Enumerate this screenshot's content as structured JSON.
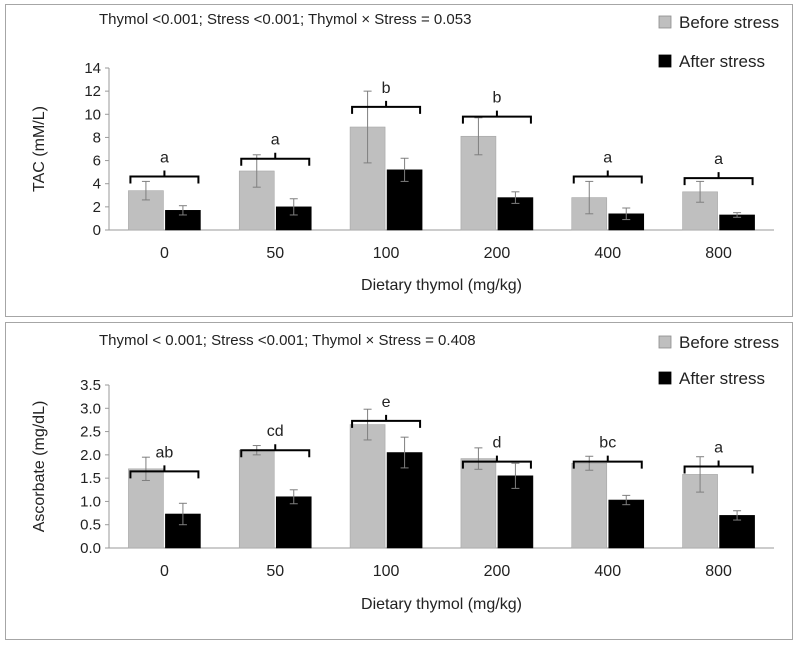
{
  "chart_data": [
    {
      "type": "bar",
      "stats_text": "Thymol <0.001; Stress <0.001; Thymol × Stress = 0.053",
      "xlabel": "Dietary thymol (mg/kg)",
      "ylabel": "TAC (mM/L)",
      "categories": [
        "0",
        "50",
        "100",
        "200",
        "400",
        "800"
      ],
      "ylim": [
        0,
        14
      ],
      "yticks": [
        "0",
        "2",
        "4",
        "6",
        "8",
        "10",
        "12",
        "14"
      ],
      "grid": false,
      "legend": "top-right",
      "series": [
        {
          "name": "Before stress",
          "color": "#bfbfbf",
          "values": [
            3.4,
            5.1,
            8.9,
            8.1,
            2.8,
            3.3
          ],
          "errors": [
            0.8,
            1.4,
            3.1,
            1.6,
            1.4,
            0.9
          ]
        },
        {
          "name": "After stress",
          "color": "#000000",
          "values": [
            1.7,
            2.0,
            5.2,
            2.8,
            1.4,
            1.3
          ],
          "errors": [
            0.4,
            0.7,
            1.0,
            0.5,
            0.5,
            0.2
          ]
        }
      ],
      "group_labels": [
        "a",
        "a",
        "b",
        "b",
        "a",
        "a"
      ]
    },
    {
      "type": "bar",
      "stats_text": "Thymol < 0.001; Stress <0.001; Thymol × Stress = 0.408",
      "xlabel": "Dietary thymol (mg/kg)",
      "ylabel": "Ascorbate (mg/dL)",
      "categories": [
        "0",
        "50",
        "100",
        "200",
        "400",
        "800"
      ],
      "ylim": [
        0,
        3.5
      ],
      "yticks": [
        "0.0",
        "0.5",
        "1.0",
        "1.5",
        "2.0",
        "2.5",
        "3.0",
        "3.5"
      ],
      "grid": false,
      "legend": "top-right",
      "series": [
        {
          "name": "Before stress",
          "color": "#bfbfbf",
          "values": [
            1.7,
            2.1,
            2.65,
            1.92,
            1.82,
            1.58
          ],
          "errors": [
            0.25,
            0.1,
            0.33,
            0.23,
            0.15,
            0.38
          ]
        },
        {
          "name": "After stress",
          "color": "#000000",
          "values": [
            0.73,
            1.1,
            2.05,
            1.55,
            1.03,
            0.7
          ],
          "errors": [
            0.23,
            0.15,
            0.33,
            0.27,
            0.1,
            0.1
          ]
        }
      ],
      "group_labels": [
        "ab",
        "cd",
        "e",
        "d",
        "bc",
        "a"
      ]
    }
  ]
}
